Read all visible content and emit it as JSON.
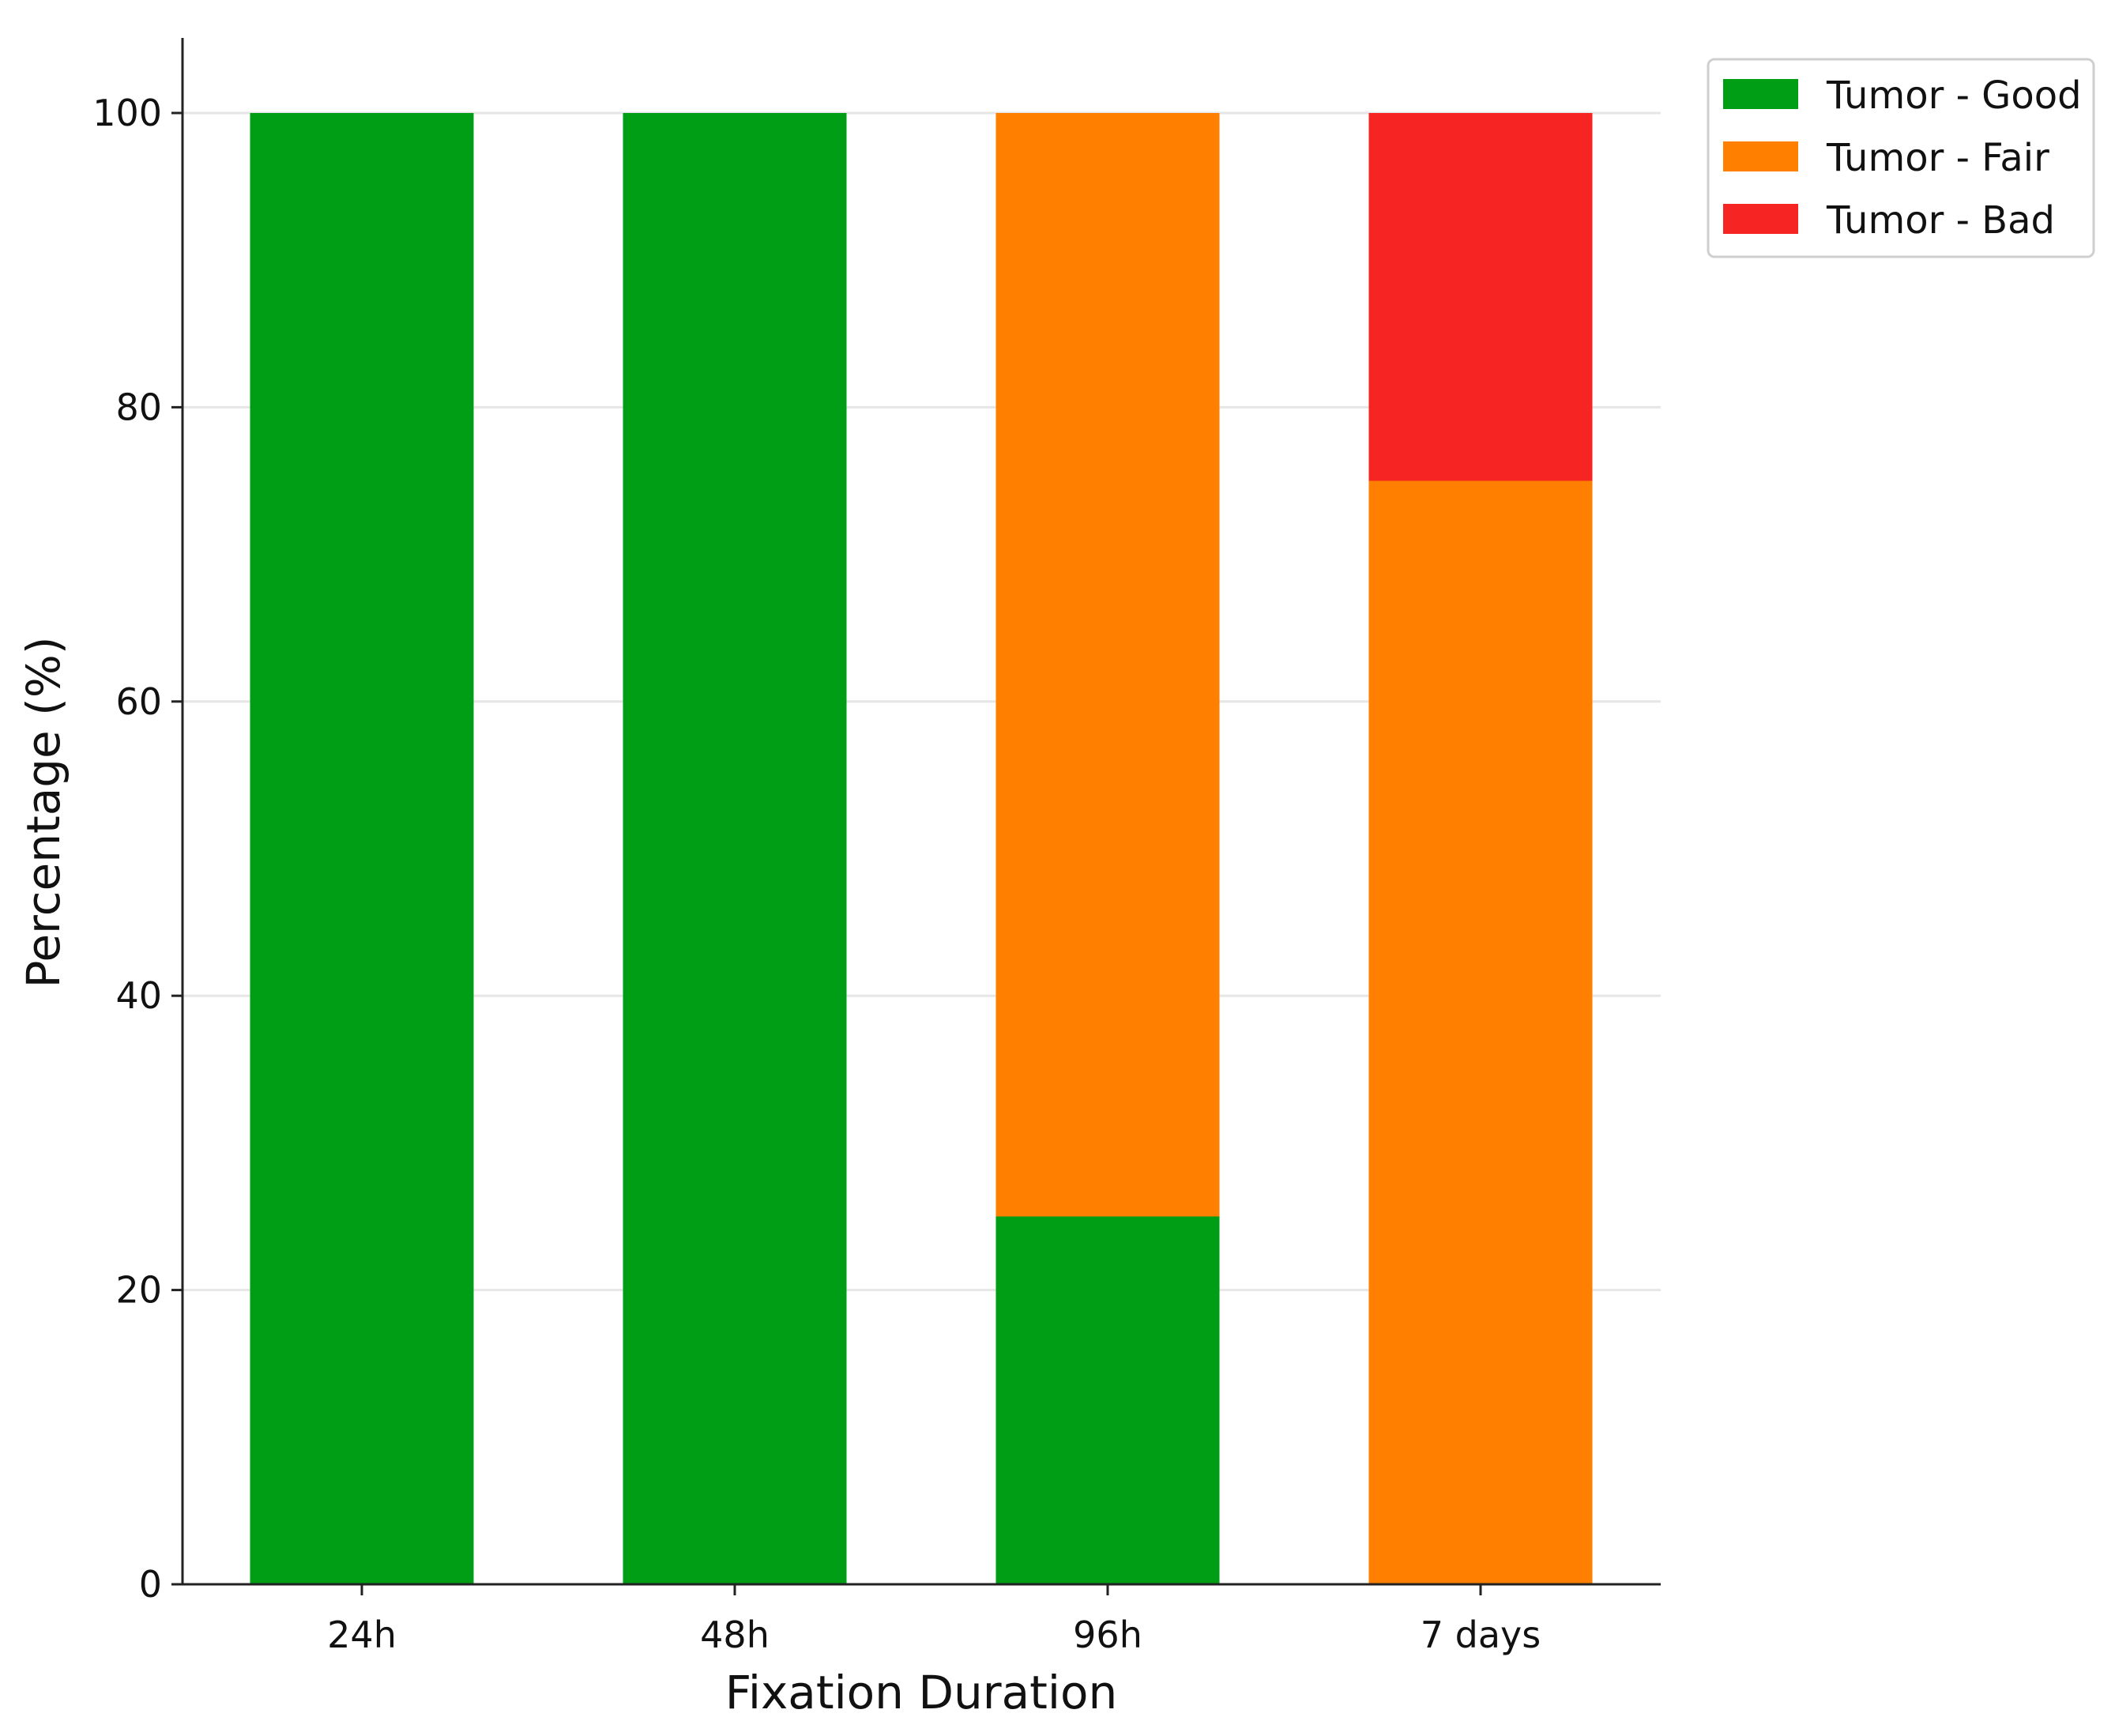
{
  "chart_data": {
    "type": "bar",
    "stacked": true,
    "categories": [
      "24h",
      "48h",
      "96h",
      "7 days"
    ],
    "series": [
      {
        "name": "Tumor - Good",
        "color": "#009e14",
        "values": [
          100,
          100,
          25,
          0
        ]
      },
      {
        "name": "Tumor - Fair",
        "color": "#ff8000",
        "values": [
          0,
          0,
          75,
          75
        ]
      },
      {
        "name": "Tumor - Bad",
        "color": "#f72424",
        "values": [
          0,
          0,
          0,
          25
        ]
      }
    ],
    "title": "",
    "xlabel": "Fixation Duration",
    "ylabel": "Percentage (%)",
    "ylim": [
      0,
      105
    ],
    "yticks": [
      0,
      20,
      40,
      60,
      80,
      100
    ],
    "grid": "horizontal",
    "legend_position": "upper-right-outside"
  }
}
